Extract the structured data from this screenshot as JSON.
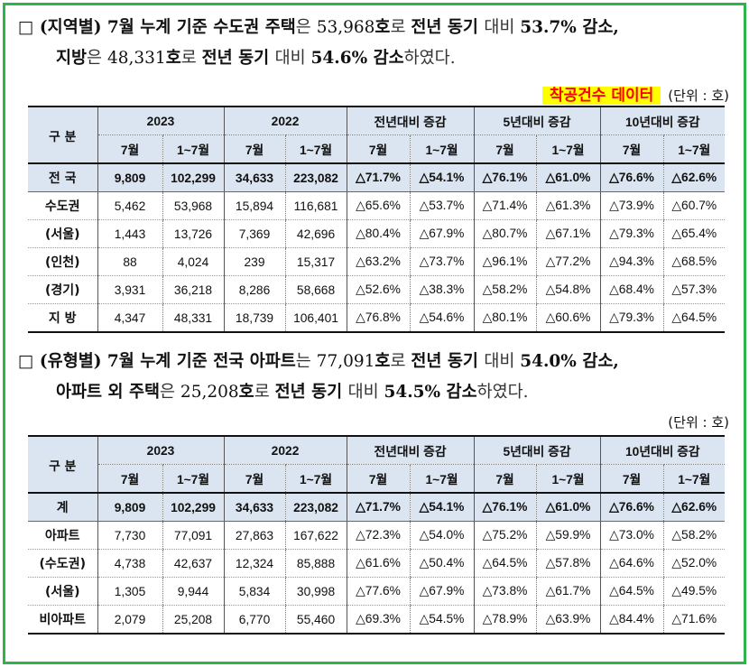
{
  "para1": {
    "line1": [
      {
        "t": "□ (지역별) 7월 누계 기준 수도권 ",
        "c": "b"
      },
      {
        "t": "주택",
        "c": "b"
      },
      {
        "t": "은 ",
        "c": "lt"
      },
      {
        "t": "53,968",
        "c": "n"
      },
      {
        "t": "호",
        "c": "b"
      },
      {
        "t": "로 ",
        "c": "lt"
      },
      {
        "t": "전년 동기 ",
        "c": "b"
      },
      {
        "t": "대비 ",
        "c": "lt"
      },
      {
        "t": "53.7% ",
        "c": "b"
      },
      {
        "t": "감소,",
        "c": "b"
      }
    ],
    "line2": [
      {
        "t": "지방",
        "c": "b"
      },
      {
        "t": "은 ",
        "c": "lt"
      },
      {
        "t": "48,331",
        "c": "n"
      },
      {
        "t": "호",
        "c": "b"
      },
      {
        "t": "로 ",
        "c": "lt"
      },
      {
        "t": "전년 동기 ",
        "c": "b"
      },
      {
        "t": "대비 ",
        "c": "lt"
      },
      {
        "t": "54.6% 감소",
        "c": "b"
      },
      {
        "t": "하였다.",
        "c": "lt"
      }
    ]
  },
  "highlight_label": "착공건수 데이터",
  "unit_label": "(단위 : 호)",
  "table1": {
    "corner": "구 분",
    "groups": [
      "2023",
      "2022",
      "전년대비 증감",
      "5년대비 증감",
      "10년대비 증감"
    ],
    "sub": [
      "7월",
      "1~7월",
      "7월",
      "1~7월",
      "7월",
      "1~7월",
      "7월",
      "1~7월",
      "7월",
      "1~7월"
    ],
    "rows": [
      {
        "label": "전 국",
        "cells": [
          "9,809",
          "102,299",
          "34,633",
          "223,082",
          "△71.7%",
          "△54.1%",
          "△76.1%",
          "△61.0%",
          "△76.6%",
          "△62.6%"
        ]
      },
      {
        "label": "수도권",
        "cells": [
          "5,462",
          "53,968",
          "15,894",
          "116,681",
          "△65.6%",
          "△53.7%",
          "△71.4%",
          "△61.3%",
          "△73.9%",
          "△60.7%"
        ]
      },
      {
        "label": "(서울)",
        "cells": [
          "1,443",
          "13,726",
          "7,369",
          "42,696",
          "△80.4%",
          "△67.9%",
          "△80.7%",
          "△67.1%",
          "△79.3%",
          "△65.4%"
        ]
      },
      {
        "label": "(인천)",
        "cells": [
          "88",
          "4,024",
          "239",
          "15,317",
          "△63.2%",
          "△73.7%",
          "△96.1%",
          "△77.2%",
          "△94.3%",
          "△68.5%"
        ]
      },
      {
        "label": "(경기)",
        "cells": [
          "3,931",
          "36,218",
          "8,286",
          "58,668",
          "△52.6%",
          "△38.3%",
          "△58.2%",
          "△54.8%",
          "△68.4%",
          "△57.3%"
        ]
      },
      {
        "label": "지 방",
        "cells": [
          "4,347",
          "48,331",
          "18,739",
          "106,401",
          "△76.8%",
          "△54.6%",
          "△80.1%",
          "△60.6%",
          "△79.3%",
          "△64.5%"
        ]
      }
    ]
  },
  "para2": {
    "line1": [
      {
        "t": "□ (유형별) 7월 누계 기준 전국 ",
        "c": "b"
      },
      {
        "t": "아파트",
        "c": "b"
      },
      {
        "t": "는 ",
        "c": "lt"
      },
      {
        "t": "77,091",
        "c": "n"
      },
      {
        "t": "호",
        "c": "b"
      },
      {
        "t": "로 ",
        "c": "lt"
      },
      {
        "t": "전년 동기 ",
        "c": "b"
      },
      {
        "t": "대비 ",
        "c": "lt"
      },
      {
        "t": "54.0% ",
        "c": "b"
      },
      {
        "t": "감소,",
        "c": "b"
      }
    ],
    "line2": [
      {
        "t": "아파트 외 주택",
        "c": "b"
      },
      {
        "t": "은 ",
        "c": "lt"
      },
      {
        "t": "25,208",
        "c": "n"
      },
      {
        "t": "호",
        "c": "b"
      },
      {
        "t": "로 ",
        "c": "lt"
      },
      {
        "t": "전년 동기 ",
        "c": "b"
      },
      {
        "t": "대비 ",
        "c": "lt"
      },
      {
        "t": "54.5% 감소",
        "c": "b"
      },
      {
        "t": "하였다.",
        "c": "lt"
      }
    ]
  },
  "unit_label2": "(단위 : 호)",
  "table2": {
    "corner": "구 분",
    "groups": [
      "2023",
      "2022",
      "전년대비 증감",
      "5년대비 증감",
      "10년대비 증감"
    ],
    "sub": [
      "7월",
      "1~7월",
      "7월",
      "1~7월",
      "7월",
      "1~7월",
      "7월",
      "1~7월",
      "7월",
      "1~7월"
    ],
    "rows": [
      {
        "label": "계",
        "cells": [
          "9,809",
          "102,299",
          "34,633",
          "223,082",
          "△71.7%",
          "△54.1%",
          "△76.1%",
          "△61.0%",
          "△76.6%",
          "△62.6%"
        ]
      },
      {
        "label": "아파트",
        "cells": [
          "7,730",
          "77,091",
          "27,863",
          "167,622",
          "△72.3%",
          "△54.0%",
          "△75.2%",
          "△59.9%",
          "△73.0%",
          "△58.2%"
        ]
      },
      {
        "label": "(수도권)",
        "cells": [
          "4,738",
          "42,637",
          "12,324",
          "85,888",
          "△61.6%",
          "△50.4%",
          "△64.5%",
          "△57.8%",
          "△64.6%",
          "△52.0%"
        ]
      },
      {
        "label": "(서울)",
        "cells": [
          "1,305",
          "9,944",
          "5,834",
          "30,998",
          "△77.6%",
          "△67.9%",
          "△73.8%",
          "△61.7%",
          "△64.5%",
          "△49.5%"
        ]
      },
      {
        "label": "비아파트",
        "cells": [
          "2,079",
          "25,208",
          "6,770",
          "55,460",
          "△69.3%",
          "△54.5%",
          "△78.9%",
          "△63.9%",
          "△84.4%",
          "△71.6%"
        ]
      }
    ]
  },
  "colors": {
    "border": "#2fb34a",
    "header_bg": "#dbe5f1",
    "highlight_bg": "#ffff00",
    "highlight_text": "#ff0000"
  }
}
